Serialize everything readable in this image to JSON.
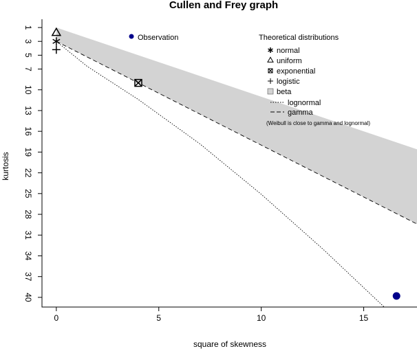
{
  "chart_data": {
    "type": "scatter",
    "title": "Cullen and Frey graph",
    "xlabel": "square of skewness",
    "ylabel": "kurtosis",
    "xlim": [
      -0.7,
      17.6
    ],
    "ylim": [
      41.4,
      -0.2
    ],
    "y_reversed": true,
    "x_ticks": [
      0,
      5,
      10,
      15
    ],
    "y_ticks": [
      1,
      3,
      5,
      7,
      10,
      13,
      16,
      19,
      22,
      25,
      28,
      31,
      34,
      37,
      40
    ],
    "observation": {
      "name": "Observation",
      "x": 16.6,
      "y": 39.8,
      "color": "#00008b"
    },
    "theoretical": {
      "normal": {
        "x": 0,
        "y": 3
      },
      "uniform": {
        "x": 0,
        "y": 1.8
      },
      "exponential": {
        "x": 4,
        "y": 9
      },
      "logistic": {
        "x": 0,
        "y": 4.2
      }
    },
    "beta_region": {
      "upper": [
        [
          0,
          1
        ],
        [
          17.6,
          18.6
        ]
      ],
      "lower": [
        [
          0,
          3
        ],
        [
          17.6,
          29.4
        ]
      ],
      "fill": "#d3d3d3"
    },
    "gamma_line": [
      [
        0,
        3
      ],
      [
        17.6,
        29.4
      ]
    ],
    "lognormal_line": [
      [
        0,
        3
      ],
      [
        1.5,
        6.6
      ],
      [
        4,
        11.4
      ],
      [
        7,
        17.8
      ],
      [
        10,
        25.1
      ],
      [
        13,
        33.0
      ],
      [
        16,
        41.4
      ]
    ],
    "legend": {
      "observation_label": "Observation",
      "title": "Theoretical distributions",
      "items": [
        {
          "key": "normal",
          "label": "normal",
          "symbol": "asterisk"
        },
        {
          "key": "uniform",
          "label": "uniform",
          "symbol": "triangle"
        },
        {
          "key": "exponential",
          "label": "exponential",
          "symbol": "boxed-x"
        },
        {
          "key": "logistic",
          "label": "logistic",
          "symbol": "plus"
        },
        {
          "key": "beta",
          "label": "beta",
          "symbol": "gray-square"
        },
        {
          "key": "lognormal",
          "label": "lognormal",
          "symbol": "dotted-line"
        },
        {
          "key": "gamma",
          "label": "gamma",
          "symbol": "dashed-line"
        }
      ],
      "note": "(Weibull is close to gamma and lognormal)"
    }
  }
}
